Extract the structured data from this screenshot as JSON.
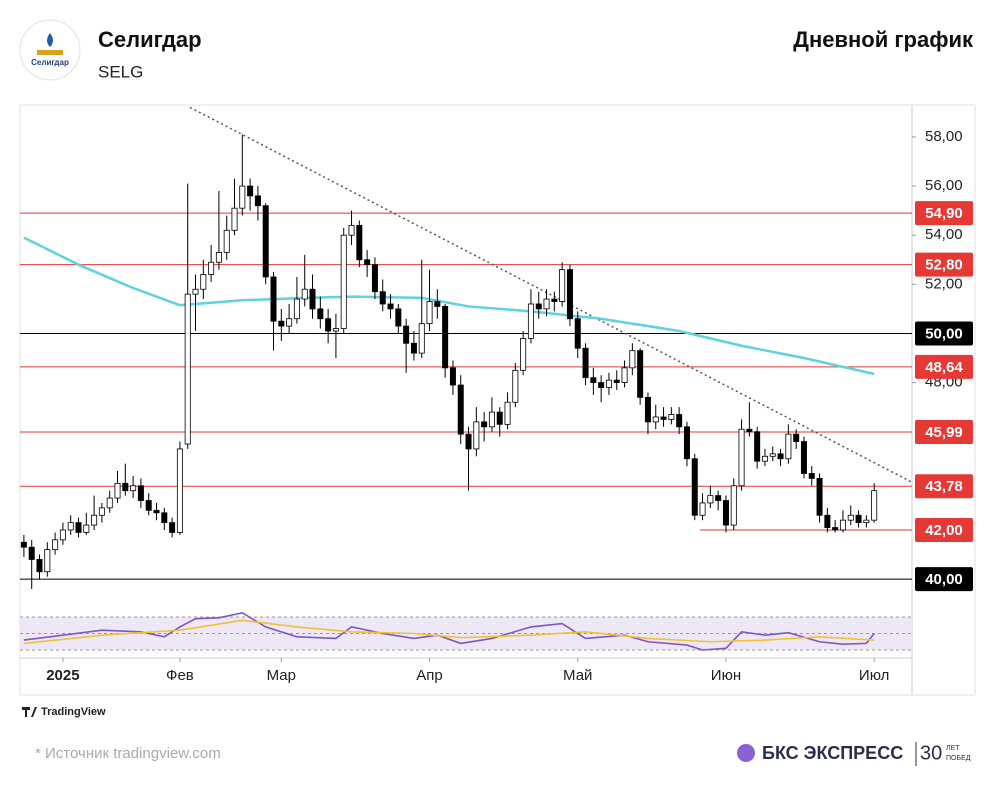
{
  "header": {
    "logo_text": "Селигдар",
    "title": "Селигдар",
    "ticker": "SELG",
    "chart_label": "Дневной график"
  },
  "chart_data": {
    "type": "candlestick",
    "candles": [
      [
        41.5,
        41.8,
        40.9,
        41.3
      ],
      [
        41.3,
        41.6,
        39.6,
        40.8
      ],
      [
        40.8,
        41.0,
        40.0,
        40.3
      ],
      [
        40.3,
        41.5,
        40.1,
        41.2
      ],
      [
        41.2,
        41.9,
        41.0,
        41.6
      ],
      [
        41.6,
        42.3,
        41.4,
        42.0
      ],
      [
        42.0,
        42.6,
        41.8,
        42.3
      ],
      [
        42.3,
        42.5,
        41.7,
        41.9
      ],
      [
        41.9,
        42.7,
        41.8,
        42.2
      ],
      [
        42.2,
        43.4,
        42.0,
        42.6
      ],
      [
        42.6,
        43.1,
        42.3,
        42.9
      ],
      [
        42.9,
        43.6,
        42.7,
        43.3
      ],
      [
        43.3,
        44.4,
        43.1,
        43.9
      ],
      [
        43.9,
        44.7,
        43.4,
        43.6
      ],
      [
        43.6,
        44.2,
        43.3,
        43.8
      ],
      [
        43.8,
        44.1,
        42.9,
        43.2
      ],
      [
        43.2,
        43.5,
        42.6,
        42.8
      ],
      [
        42.8,
        43.1,
        42.4,
        42.7
      ],
      [
        42.7,
        42.9,
        42.0,
        42.3
      ],
      [
        42.3,
        42.5,
        41.7,
        41.9
      ],
      [
        41.9,
        45.6,
        41.8,
        45.3
      ],
      [
        45.5,
        56.1,
        45.3,
        51.6
      ],
      [
        51.6,
        52.4,
        50.1,
        51.8
      ],
      [
        51.8,
        53.0,
        51.4,
        52.4
      ],
      [
        52.4,
        53.6,
        52.1,
        52.9
      ],
      [
        52.9,
        55.8,
        52.6,
        53.3
      ],
      [
        53.3,
        54.8,
        53.0,
        54.2
      ],
      [
        54.2,
        56.3,
        54.0,
        55.1
      ],
      [
        55.1,
        58.1,
        54.8,
        56.0
      ],
      [
        56.0,
        56.3,
        55.0,
        55.6
      ],
      [
        55.6,
        56.0,
        54.6,
        55.2
      ],
      [
        55.2,
        55.3,
        52.0,
        52.3
      ],
      [
        52.3,
        52.5,
        49.3,
        50.5
      ],
      [
        50.5,
        51.0,
        49.7,
        50.3
      ],
      [
        50.3,
        51.2,
        50.0,
        50.6
      ],
      [
        50.6,
        52.3,
        50.4,
        51.4
      ],
      [
        51.4,
        53.2,
        51.1,
        51.8
      ],
      [
        51.8,
        52.4,
        50.6,
        51.0
      ],
      [
        51.0,
        51.5,
        50.2,
        50.6
      ],
      [
        50.6,
        51.0,
        49.6,
        50.1
      ],
      [
        50.1,
        50.8,
        49.0,
        50.2
      ],
      [
        50.2,
        54.3,
        50.0,
        54.0
      ],
      [
        54.0,
        55.0,
        53.6,
        54.4
      ],
      [
        54.4,
        54.6,
        52.7,
        53.0
      ],
      [
        53.0,
        53.4,
        52.3,
        52.8
      ],
      [
        52.8,
        53.1,
        51.4,
        51.7
      ],
      [
        51.7,
        52.2,
        50.9,
        51.2
      ],
      [
        51.2,
        51.6,
        50.6,
        51.0
      ],
      [
        51.0,
        51.2,
        50.0,
        50.3
      ],
      [
        50.3,
        50.6,
        48.4,
        49.6
      ],
      [
        49.6,
        50.1,
        48.9,
        49.2
      ],
      [
        49.2,
        53.0,
        49.0,
        50.4
      ],
      [
        50.4,
        52.6,
        50.1,
        51.3
      ],
      [
        51.3,
        51.8,
        50.6,
        51.1
      ],
      [
        51.1,
        51.2,
        48.2,
        48.6
      ],
      [
        48.6,
        48.9,
        47.5,
        47.9
      ],
      [
        47.9,
        48.3,
        45.5,
        45.9
      ],
      [
        45.9,
        46.2,
        43.6,
        45.3
      ],
      [
        45.3,
        47.0,
        45.0,
        46.4
      ],
      [
        46.4,
        46.8,
        45.6,
        46.2
      ],
      [
        46.2,
        47.4,
        46.0,
        46.8
      ],
      [
        46.8,
        47.0,
        45.8,
        46.3
      ],
      [
        46.3,
        47.6,
        46.1,
        47.2
      ],
      [
        47.2,
        48.8,
        47.0,
        48.5
      ],
      [
        48.5,
        50.1,
        48.3,
        49.8
      ],
      [
        49.8,
        51.8,
        49.6,
        51.2
      ],
      [
        51.2,
        51.7,
        50.6,
        51.0
      ],
      [
        51.0,
        51.8,
        50.7,
        51.4
      ],
      [
        51.4,
        51.7,
        50.9,
        51.3
      ],
      [
        51.3,
        52.9,
        51.1,
        52.6
      ],
      [
        52.6,
        52.8,
        50.3,
        50.6
      ],
      [
        50.6,
        50.9,
        49.0,
        49.4
      ],
      [
        49.4,
        49.6,
        47.9,
        48.2
      ],
      [
        48.2,
        48.6,
        47.5,
        48.0
      ],
      [
        48.0,
        48.3,
        47.2,
        47.8
      ],
      [
        47.8,
        48.4,
        47.5,
        48.1
      ],
      [
        48.1,
        48.5,
        47.7,
        48.0
      ],
      [
        48.0,
        48.9,
        47.8,
        48.6
      ],
      [
        48.6,
        49.6,
        48.3,
        49.3
      ],
      [
        49.3,
        49.4,
        47.1,
        47.4
      ],
      [
        47.4,
        47.6,
        45.9,
        46.4
      ],
      [
        46.4,
        47.1,
        46.1,
        46.6
      ],
      [
        46.6,
        47.0,
        46.2,
        46.5
      ],
      [
        46.5,
        47.0,
        46.3,
        46.7
      ],
      [
        46.7,
        47.0,
        45.9,
        46.2
      ],
      [
        46.2,
        46.4,
        44.6,
        44.9
      ],
      [
        44.9,
        45.1,
        42.4,
        42.6
      ],
      [
        42.6,
        43.5,
        42.4,
        43.1
      ],
      [
        43.1,
        43.8,
        42.9,
        43.4
      ],
      [
        43.4,
        43.6,
        42.8,
        43.2
      ],
      [
        43.2,
        43.4,
        41.9,
        42.2
      ],
      [
        42.2,
        44.1,
        42.0,
        43.8
      ],
      [
        43.8,
        46.5,
        43.6,
        46.1
      ],
      [
        46.1,
        47.2,
        45.8,
        46.0
      ],
      [
        46.0,
        46.2,
        44.5,
        44.8
      ],
      [
        44.8,
        45.3,
        44.6,
        45.0
      ],
      [
        45.0,
        45.4,
        44.8,
        45.1
      ],
      [
        45.1,
        45.3,
        44.6,
        44.9
      ],
      [
        44.9,
        46.3,
        44.7,
        45.9
      ],
      [
        45.9,
        46.1,
        45.3,
        45.6
      ],
      [
        45.6,
        45.8,
        44.1,
        44.3
      ],
      [
        44.3,
        44.6,
        43.8,
        44.1
      ],
      [
        44.1,
        44.3,
        42.3,
        42.6
      ],
      [
        42.6,
        42.9,
        41.9,
        42.1
      ],
      [
        42.1,
        42.4,
        41.9,
        42.0
      ],
      [
        42.0,
        42.8,
        41.9,
        42.4
      ],
      [
        42.4,
        43.0,
        42.2,
        42.6
      ],
      [
        42.6,
        42.8,
        42.1,
        42.3
      ],
      [
        42.3,
        42.6,
        42.1,
        42.4
      ],
      [
        42.4,
        43.9,
        42.3,
        43.6
      ]
    ],
    "up_color": "#ffffff",
    "down_color": "#000000",
    "xlim": [
      -0.5,
      113.85
    ],
    "ylim": [
      39.15,
      59.3
    ],
    "yticks": [
      {
        "value": 58,
        "label": "58,00"
      },
      {
        "value": 56,
        "label": "56,00"
      },
      {
        "value": 54,
        "label": "54,00"
      },
      {
        "value": 52,
        "label": "52,00"
      },
      {
        "value": 48,
        "label": "48,00"
      }
    ],
    "xticks": [
      {
        "value": 5,
        "label": "2025"
      },
      {
        "value": 20,
        "label": "Фев"
      },
      {
        "value": 33,
        "label": "Мар"
      },
      {
        "value": 52,
        "label": "Апр"
      },
      {
        "value": 71,
        "label": "Май"
      },
      {
        "value": 90,
        "label": "Июн"
      },
      {
        "value": 109,
        "label": "Июл"
      }
    ],
    "ma": {
      "color": "#5ed3dc",
      "x": [
        0,
        7,
        14,
        20,
        28,
        36,
        42,
        51,
        57,
        65,
        74,
        84,
        92,
        100,
        109
      ],
      "values": [
        53.9,
        52.8,
        51.85,
        51.15,
        51.35,
        51.45,
        51.5,
        51.45,
        51.1,
        50.9,
        50.6,
        50.1,
        49.5,
        49.0,
        48.35
      ]
    },
    "trendline": {
      "color": "#555555",
      "x": [
        21.3,
        113.8
      ],
      "values": [
        59.2,
        43.95
      ]
    },
    "levels": [
      {
        "value": 54.9,
        "label": "54,90",
        "color": "#e53935"
      },
      {
        "value": 52.8,
        "label": "52,80",
        "color": "#e53935"
      },
      {
        "value": 50,
        "label": "50,00",
        "color": "#000000"
      },
      {
        "value": 48.64,
        "label": "48,64",
        "color": "#e53935"
      },
      {
        "value": 45.99,
        "label": "45,99",
        "color": "#e53935"
      },
      {
        "value": 43.78,
        "label": "43,78",
        "color": "#e53935"
      },
      {
        "value": 42,
        "label": "42,00",
        "color": "#e53935",
        "from": 86.7
      },
      {
        "value": 40,
        "label": "40,00",
        "color": "#000000"
      }
    ],
    "rsi": {
      "ylim": [
        0,
        100
      ],
      "levels": [
        70,
        50,
        30
      ],
      "band_color": "#ede7f6",
      "lines": [
        {
          "color": "#7e57c2",
          "x": [
            0,
            5,
            10,
            15,
            18,
            20,
            22,
            25,
            28,
            31,
            35,
            40,
            42,
            46,
            50,
            53,
            56,
            60,
            65,
            69,
            72,
            77,
            80,
            85,
            87,
            90,
            92,
            95,
            98,
            102,
            105,
            108,
            109
          ],
          "values": [
            42,
            48,
            54,
            52,
            46,
            58,
            68,
            69,
            75,
            58,
            46,
            44,
            58,
            50,
            44,
            48,
            38,
            44,
            58,
            62,
            44,
            48,
            40,
            36,
            30,
            32,
            52,
            48,
            51,
            40,
            37,
            38,
            50
          ]
        },
        {
          "color": "#f2c230",
          "x": [
            0,
            10,
            20,
            28,
            35,
            42,
            50,
            56,
            65,
            72,
            80,
            88,
            95,
            102,
            109
          ],
          "values": [
            38,
            48,
            54,
            66,
            58,
            52,
            50,
            45,
            48,
            52,
            44,
            40,
            42,
            46,
            42
          ]
        }
      ]
    }
  },
  "footer": {
    "tradingview": "TradingView",
    "source": "*  Источник tradingview.com",
    "brand": "БКС ЭКСПРЕСС",
    "anniversary": "30",
    "anniversary_top": "ЛЕТ",
    "anniversary_bottom": "ПОБЕД"
  }
}
